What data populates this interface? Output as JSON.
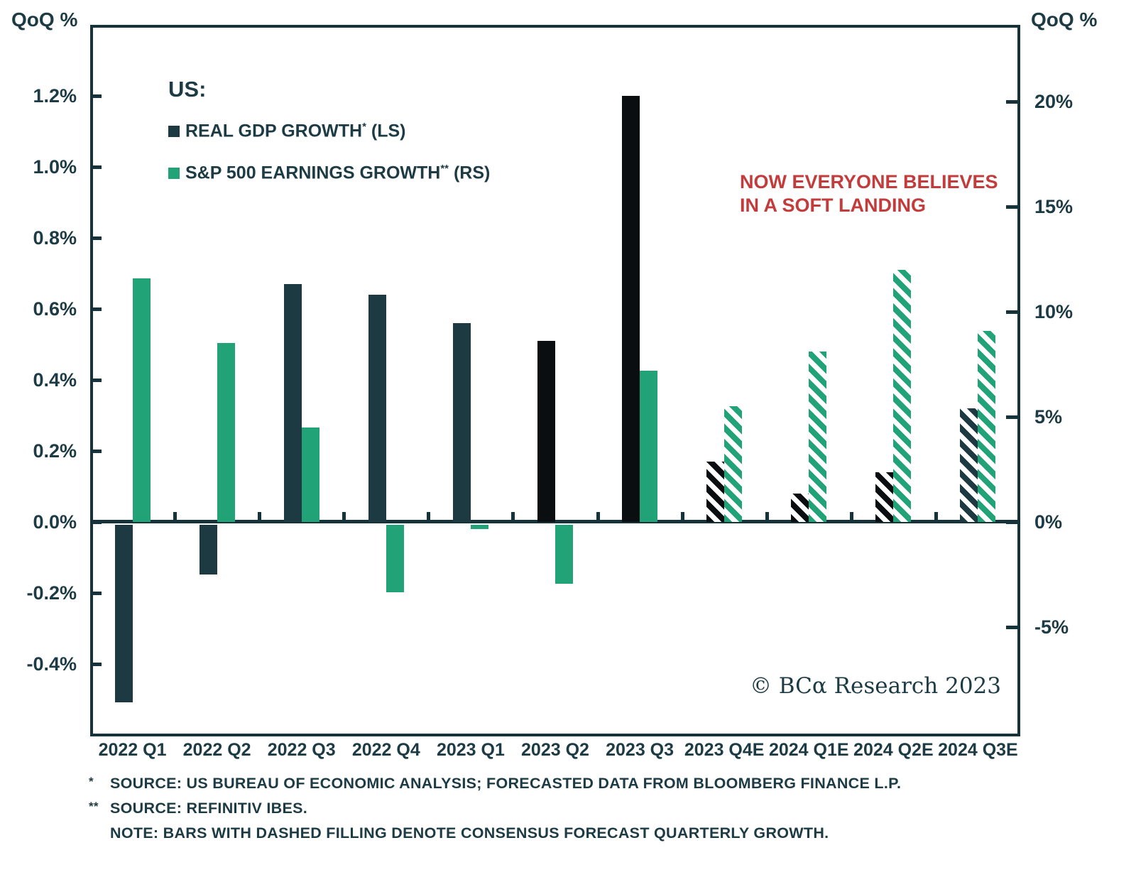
{
  "legend": {
    "title": "US:",
    "items": [
      {
        "label": "REAL GDP GROWTH",
        "sup": "*",
        "suffix": " (LS)",
        "swatch_color": "#1d3a43"
      },
      {
        "label": "S&P 500 EARNINGS GROWTH",
        "sup": "**",
        "suffix": " (RS)",
        "swatch_color": "#21a377"
      }
    ]
  },
  "annotation": {
    "line1": "NOW EVERYONE BELIEVES",
    "line2": "IN A SOFT LANDING",
    "color": "#c43b3b"
  },
  "copyright": "© BCα Research 2023",
  "footnotes": [
    {
      "marker": "*",
      "text": "SOURCE: US BUREAU OF ECONOMIC ANALYSIS; FORECASTED DATA FROM BLOOMBERG FINANCE L.P."
    },
    {
      "marker": "**",
      "text": "SOURCE: REFINITIV IBES."
    },
    {
      "marker": "",
      "text": "NOTE: BARS WITH DASHED FILLING DENOTE CONSENSUS FORECAST QUARTERLY GROWTH."
    }
  ],
  "chart_data": {
    "type": "bar",
    "title": "US: Real GDP Growth (LS) vs S&P 500 Earnings Growth (RS)",
    "categories": [
      "2022 Q1",
      "2022 Q2",
      "2022 Q3",
      "2022 Q4",
      "2023 Q1",
      "2023 Q2",
      "2023 Q3",
      "2023 Q4E",
      "2024 Q1E",
      "2024 Q2E",
      "2024 Q3E"
    ],
    "series": [
      {
        "name": "REAL GDP GROWTH* (LS)",
        "axis": "left",
        "unit": "% QoQ",
        "values": [
          -0.5,
          -0.14,
          0.67,
          0.64,
          0.56,
          0.51,
          1.2,
          0.17,
          0.08,
          0.14,
          0.32
        ],
        "forecast": [
          false,
          false,
          false,
          false,
          false,
          false,
          false,
          true,
          true,
          true,
          true
        ],
        "colors": [
          "teal",
          "teal",
          "teal",
          "teal",
          "teal",
          "black",
          "black",
          "black",
          "black",
          "black",
          "teal"
        ]
      },
      {
        "name": "S&P 500 EARNINGS GROWTH** (RS)",
        "axis": "right",
        "unit": "% QoQ",
        "values": [
          11.6,
          8.5,
          4.5,
          -3.2,
          -0.2,
          -2.8,
          7.2,
          5.5,
          8.1,
          12.0,
          9.1
        ],
        "forecast": [
          false,
          false,
          false,
          false,
          false,
          false,
          false,
          true,
          true,
          true,
          true
        ],
        "colors": [
          "green",
          "green",
          "green",
          "green",
          "green",
          "green",
          "green",
          "green",
          "green",
          "green",
          "green"
        ]
      }
    ],
    "left_axis": {
      "title": "QoQ %",
      "ticks": [
        {
          "label": "1.2%",
          "value": 1.2
        },
        {
          "label": "1.0%",
          "value": 1.0
        },
        {
          "label": "0.8%",
          "value": 0.8
        },
        {
          "label": "0.6%",
          "value": 0.6
        },
        {
          "label": "0.4%",
          "value": 0.4
        },
        {
          "label": "0.2%",
          "value": 0.2
        },
        {
          "label": "0.0%",
          "value": 0.0
        },
        {
          "label": "-0.2%",
          "value": -0.2
        },
        {
          "label": "-0.4%",
          "value": -0.4
        }
      ]
    },
    "right_axis": {
      "title": "QoQ %",
      "ticks": [
        {
          "label": "20%",
          "value": 20
        },
        {
          "label": "15%",
          "value": 15
        },
        {
          "label": "10%",
          "value": 10
        },
        {
          "label": "5%",
          "value": 5
        },
        {
          "label": "0%",
          "value": 0
        },
        {
          "label": "-5%",
          "value": -5
        }
      ]
    },
    "palette": {
      "teal": "#1d3a43",
      "black": "#0a0e10",
      "green": "#21a377",
      "axis": "#16323b",
      "annotation_red": "#c43b3b"
    },
    "legend_position": "top-left",
    "grid": false,
    "note": "hatched (dashed-fill) bars denote consensus forecast quarterly growth"
  }
}
